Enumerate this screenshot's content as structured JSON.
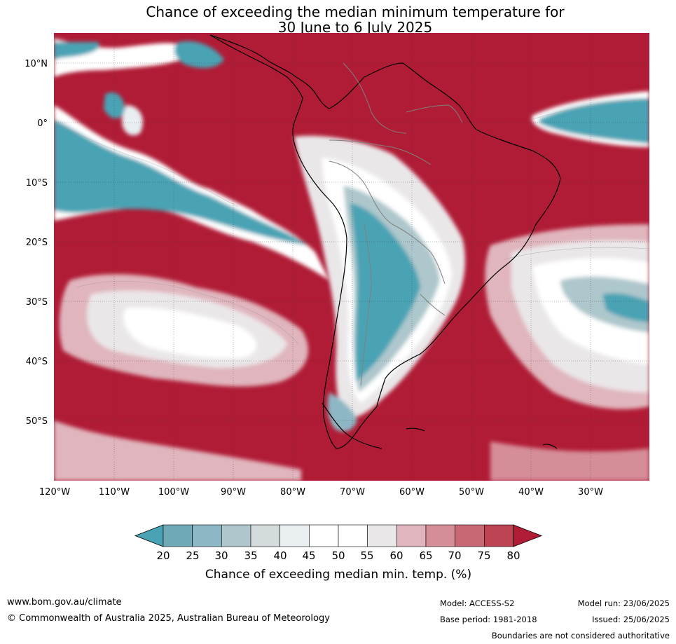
{
  "title": {
    "line1": "Chance of exceeding the median minimum temperature for",
    "line2": "30 June to 6 July 2025"
  },
  "map": {
    "region": "South America and surrounding oceans",
    "lon_range": [
      -120,
      -20
    ],
    "lat_range": [
      -60,
      15
    ],
    "latitude_labels": [
      "10°N",
      "0°",
      "10°S",
      "20°S",
      "30°S",
      "40°S",
      "50°S"
    ],
    "longitude_labels": [
      "120°W",
      "110°W",
      "100°W",
      "90°W",
      "80°W",
      "70°W",
      "60°W",
      "50°W",
      "40°W",
      "30°W"
    ],
    "colors": {
      "above_high": "#b01c36",
      "below_low": "#4aa3b4",
      "neutral": "#ffffff",
      "coast": "#000000",
      "borders": "#808080"
    }
  },
  "colorbar": {
    "title": "Chance of exceeding median min. temp. (%)",
    "ticks": [
      "20",
      "25",
      "30",
      "35",
      "40",
      "45",
      "50",
      "55",
      "60",
      "65",
      "70",
      "75",
      "80"
    ],
    "colors": [
      "#4aa3b4",
      "#6fa9b5",
      "#8db7c4",
      "#aec7cc",
      "#d3dbdd",
      "#eaf0f2",
      "#ffffff",
      "#ffffff",
      "#eae7e9",
      "#e0b5bd",
      "#d58d97",
      "#c76874",
      "#bc4352",
      "#b01c36"
    ]
  },
  "footer": {
    "website": "www.bom.gov.au/climate",
    "copyright": "© Commonwealth of Australia 2025, Australian Bureau of Meteorology",
    "model": "Model: ACCESS-S2",
    "base_period": "Base period: 1981-2018",
    "model_run": "Model run: 23/06/2025",
    "issued": "Issued: 25/06/2025",
    "boundaries": "Boundaries are not considered authoritative"
  }
}
